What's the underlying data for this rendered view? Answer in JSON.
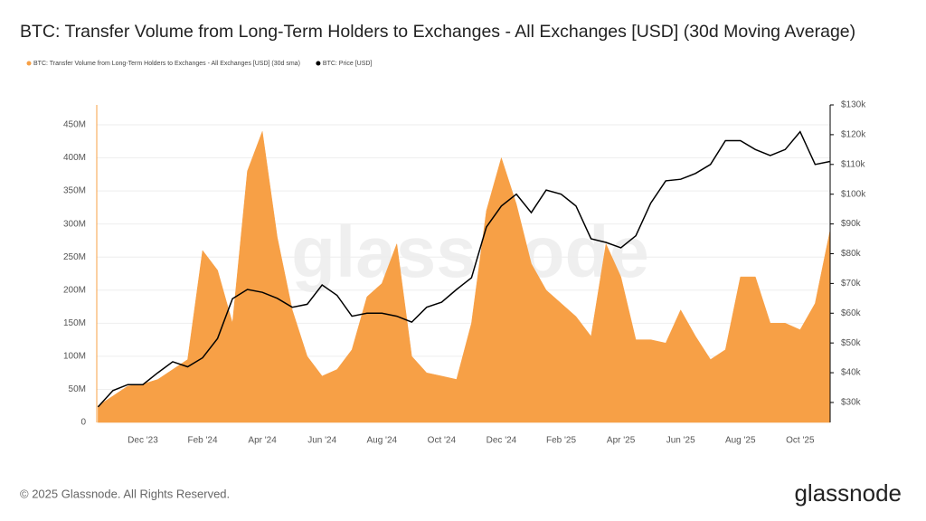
{
  "chart_data": {
    "type": "area-line",
    "title": "BTC: Transfer Volume from Long-Term Holders to Exchanges - All Exchanges [USD] (30d Moving Average)",
    "watermark": "glassnode",
    "footer": "© 2025 Glassnode. All Rights Reserved.",
    "logo": "glassnode",
    "categories": [
      null,
      null,
      null,
      "Dec '23",
      null,
      null,
      null,
      "Feb '24",
      null,
      null,
      null,
      "Apr '24",
      null,
      null,
      null,
      "Jun '24",
      null,
      null,
      null,
      "Aug '24",
      null,
      null,
      null,
      "Oct '24",
      null,
      null,
      null,
      "Dec '24",
      null,
      null,
      null,
      "Feb '25",
      null,
      null,
      null,
      "Apr '25",
      null,
      null,
      null,
      "Jun '25",
      null,
      null,
      null,
      "Aug '25",
      null,
      null,
      null,
      "Oct '25",
      null,
      null
    ],
    "series": [
      {
        "name": "BTC: Transfer Volume from Long-Term Holders to Exchanges - All Exchanges [USD] (30d sma)",
        "color": "#f7a046",
        "axis": "y",
        "values": [
          25,
          40,
          55,
          58,
          65,
          80,
          95,
          260,
          230,
          150,
          380,
          440,
          280,
          170,
          100,
          70,
          80,
          110,
          190,
          210,
          270,
          100,
          75,
          70,
          65,
          150,
          320,
          400,
          330,
          240,
          200,
          180,
          160,
          130,
          270,
          220,
          125,
          125,
          120,
          170,
          130,
          95,
          110,
          220,
          220,
          150,
          150,
          140,
          180,
          290
        ]
      },
      {
        "name": "BTC: Price [USD]",
        "color": "#000000",
        "axis": "y2",
        "values": [
          28.5,
          34,
          36,
          36,
          40,
          43.7,
          42,
          45,
          51.5,
          64.9,
          68,
          67,
          65,
          62,
          63,
          69.5,
          66,
          59,
          60,
          60,
          59,
          57,
          62,
          63.7,
          68,
          71.9,
          89,
          96,
          100,
          93.8,
          101.4,
          100,
          96,
          85,
          83.8,
          82,
          86,
          97,
          104.5,
          105,
          107,
          110,
          118,
          118,
          115,
          113,
          115,
          121,
          110,
          111
        ]
      }
    ],
    "ylim": [
      0,
      480
    ],
    "yticks": [
      0,
      {
        "value": 50,
        "label": "50M"
      },
      {
        "value": 100,
        "label": "100M"
      },
      {
        "value": 150,
        "label": "150M"
      },
      {
        "value": 200,
        "label": "200M"
      },
      {
        "value": 250,
        "label": "250M"
      },
      {
        "value": 300,
        "label": "300M"
      },
      {
        "value": 350,
        "label": "350M"
      },
      {
        "value": 400,
        "label": "400M"
      },
      {
        "value": 450,
        "label": "450M"
      }
    ],
    "y2lim": [
      23.3,
      130
    ],
    "y2ticks": [
      {
        "value": 30,
        "label": "$30k"
      },
      {
        "value": 40,
        "label": "$40k"
      },
      {
        "value": 50,
        "label": "$50k"
      },
      {
        "value": 60,
        "label": "$60k"
      },
      {
        "value": 70,
        "label": "$70k"
      },
      {
        "value": 80,
        "label": "$80k"
      },
      {
        "value": 90,
        "label": "$90k"
      },
      {
        "value": 100,
        "label": "$100k"
      },
      {
        "value": 110,
        "label": "$110k"
      },
      {
        "value": 120,
        "label": "$120k"
      },
      {
        "value": 130,
        "label": "$130k"
      }
    ],
    "grid": true
  }
}
